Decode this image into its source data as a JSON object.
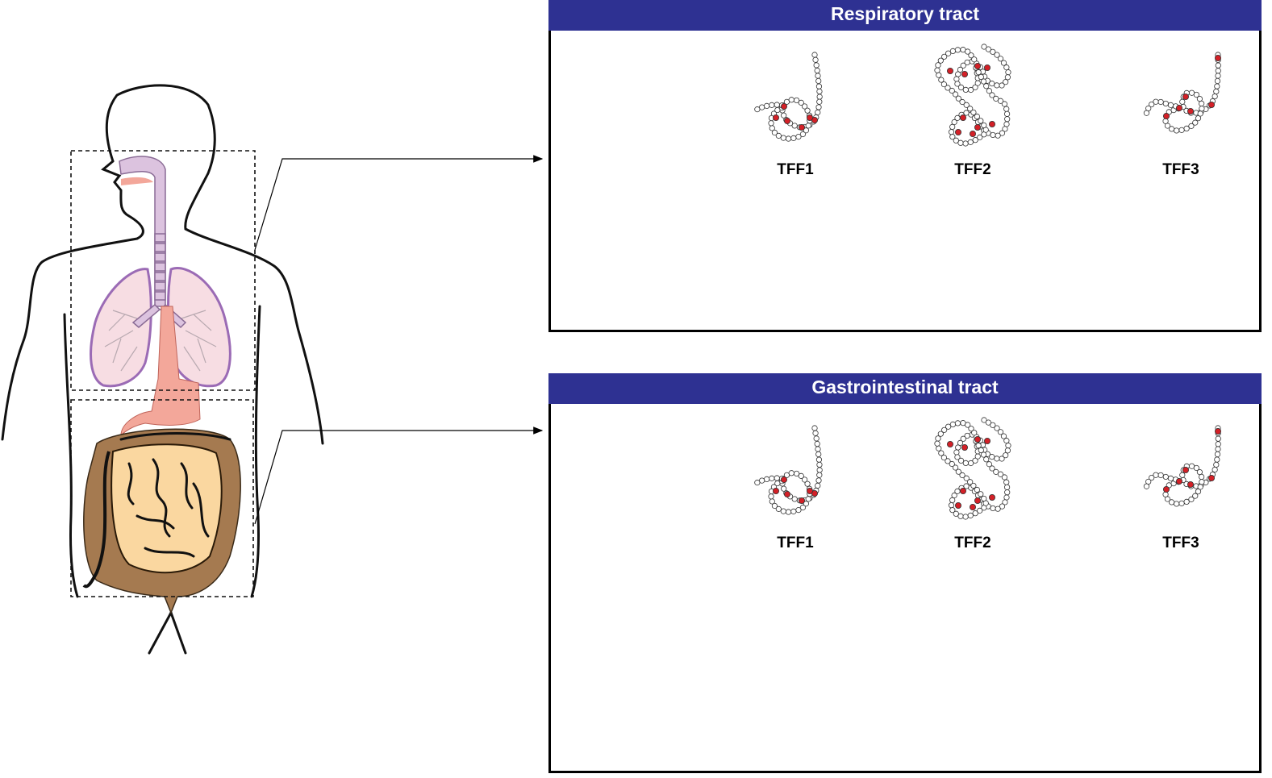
{
  "colors": {
    "header_bg": "#2e3192",
    "disulfide": "#d32027",
    "lung_fill": "#f7dde3",
    "lung_stroke": "#9b6bb5",
    "trachea_fill": "#dcc3df",
    "esophagus_fill": "#f3a79a",
    "small_intestine_fill": "#fad7a0",
    "large_intestine_fill": "#a57a50"
  },
  "panels": [
    {
      "id": "respiratory",
      "title": "Respiratory tract",
      "proteins": [
        {
          "label": "TFF1",
          "icon": "tff1-trefoil-icon"
        },
        {
          "label": "TFF2",
          "icon": "tff2-double-trefoil-icon"
        },
        {
          "label": "TFF3",
          "icon": "tff3-trefoil-icon"
        }
      ]
    },
    {
      "id": "gastrointestinal",
      "title": "Gastrointestinal tract",
      "proteins": [
        {
          "label": "TFF1",
          "icon": "tff1-trefoil-icon"
        },
        {
          "label": "TFF2",
          "icon": "tff2-double-trefoil-icon"
        },
        {
          "label": "TFF3",
          "icon": "tff3-trefoil-icon"
        }
      ]
    }
  ]
}
